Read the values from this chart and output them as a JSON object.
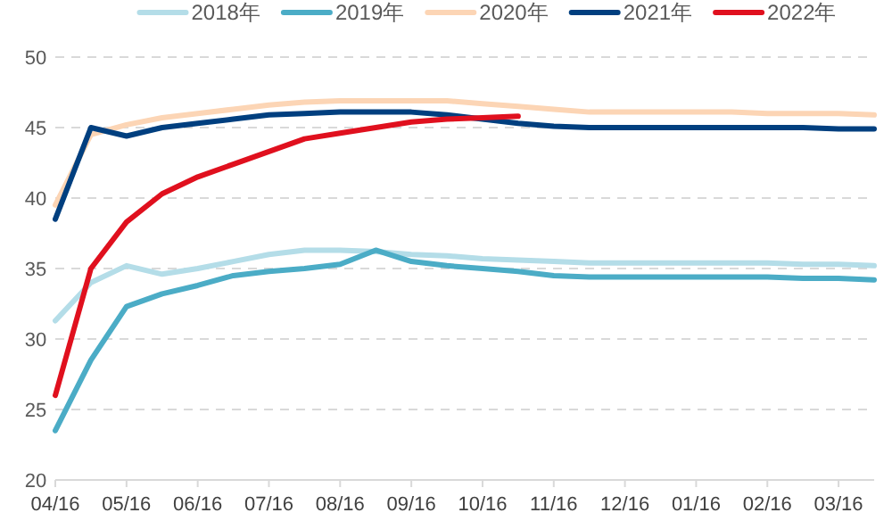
{
  "chart_data": {
    "type": "line",
    "categories": [
      "04/16",
      null,
      "05/16",
      null,
      "06/16",
      null,
      "07/16",
      null,
      "08/16",
      null,
      "09/16",
      null,
      "10/16",
      null,
      "11/16",
      null,
      "12/16",
      null,
      "01/16",
      null,
      "02/16",
      null,
      "03/16",
      null
    ],
    "series": [
      {
        "name": "2018年",
        "color": "#b4dde8",
        "values": [
          31.3,
          34,
          35.2,
          34.6,
          35,
          35.5,
          36,
          36.3,
          36.3,
          36.2,
          36,
          35.9,
          35.7,
          35.6,
          35.5,
          35.4,
          35.4,
          35.4,
          35.4,
          35.4,
          35.4,
          35.3,
          35.3,
          35.2
        ]
      },
      {
        "name": "2019年",
        "color": "#4bacc6",
        "values": [
          23.5,
          28.5,
          32.3,
          33.2,
          33.8,
          34.5,
          34.8,
          35,
          35.3,
          36.3,
          35.5,
          35.2,
          35,
          34.8,
          34.5,
          34.4,
          34.4,
          34.4,
          34.4,
          34.4,
          34.4,
          34.3,
          34.3,
          34.2
        ]
      },
      {
        "name": "2020年",
        "color": "#fcd5b5",
        "values": [
          39.5,
          44.5,
          45.2,
          45.7,
          46,
          46.3,
          46.6,
          46.8,
          46.9,
          46.9,
          46.9,
          46.9,
          46.7,
          46.5,
          46.3,
          46.1,
          46.1,
          46.1,
          46.1,
          46.1,
          46,
          46,
          46,
          45.9
        ]
      },
      {
        "name": "2021年",
        "color": "#003f7f",
        "values": [
          38.5,
          45,
          44.4,
          45,
          45.3,
          45.6,
          45.9,
          46,
          46.1,
          46.1,
          46.1,
          45.9,
          45.6,
          45.3,
          45.1,
          45,
          45,
          45,
          45,
          45,
          45,
          45,
          44.9,
          44.9
        ]
      },
      {
        "name": "2022年",
        "color": "#e0101e",
        "values": [
          26,
          35,
          38.3,
          40.3,
          41.5,
          42.4,
          43.3,
          44.2,
          44.6,
          45,
          45.4,
          45.6,
          45.7,
          45.8,
          null,
          null,
          null,
          null,
          null,
          null,
          null,
          null,
          null,
          null
        ]
      }
    ],
    "ylim": [
      20,
      50
    ],
    "yticks": [
      20,
      25,
      30,
      35,
      40,
      45,
      50
    ],
    "grid": "y",
    "legend": "top",
    "marker": "none",
    "line_style": "solid"
  }
}
